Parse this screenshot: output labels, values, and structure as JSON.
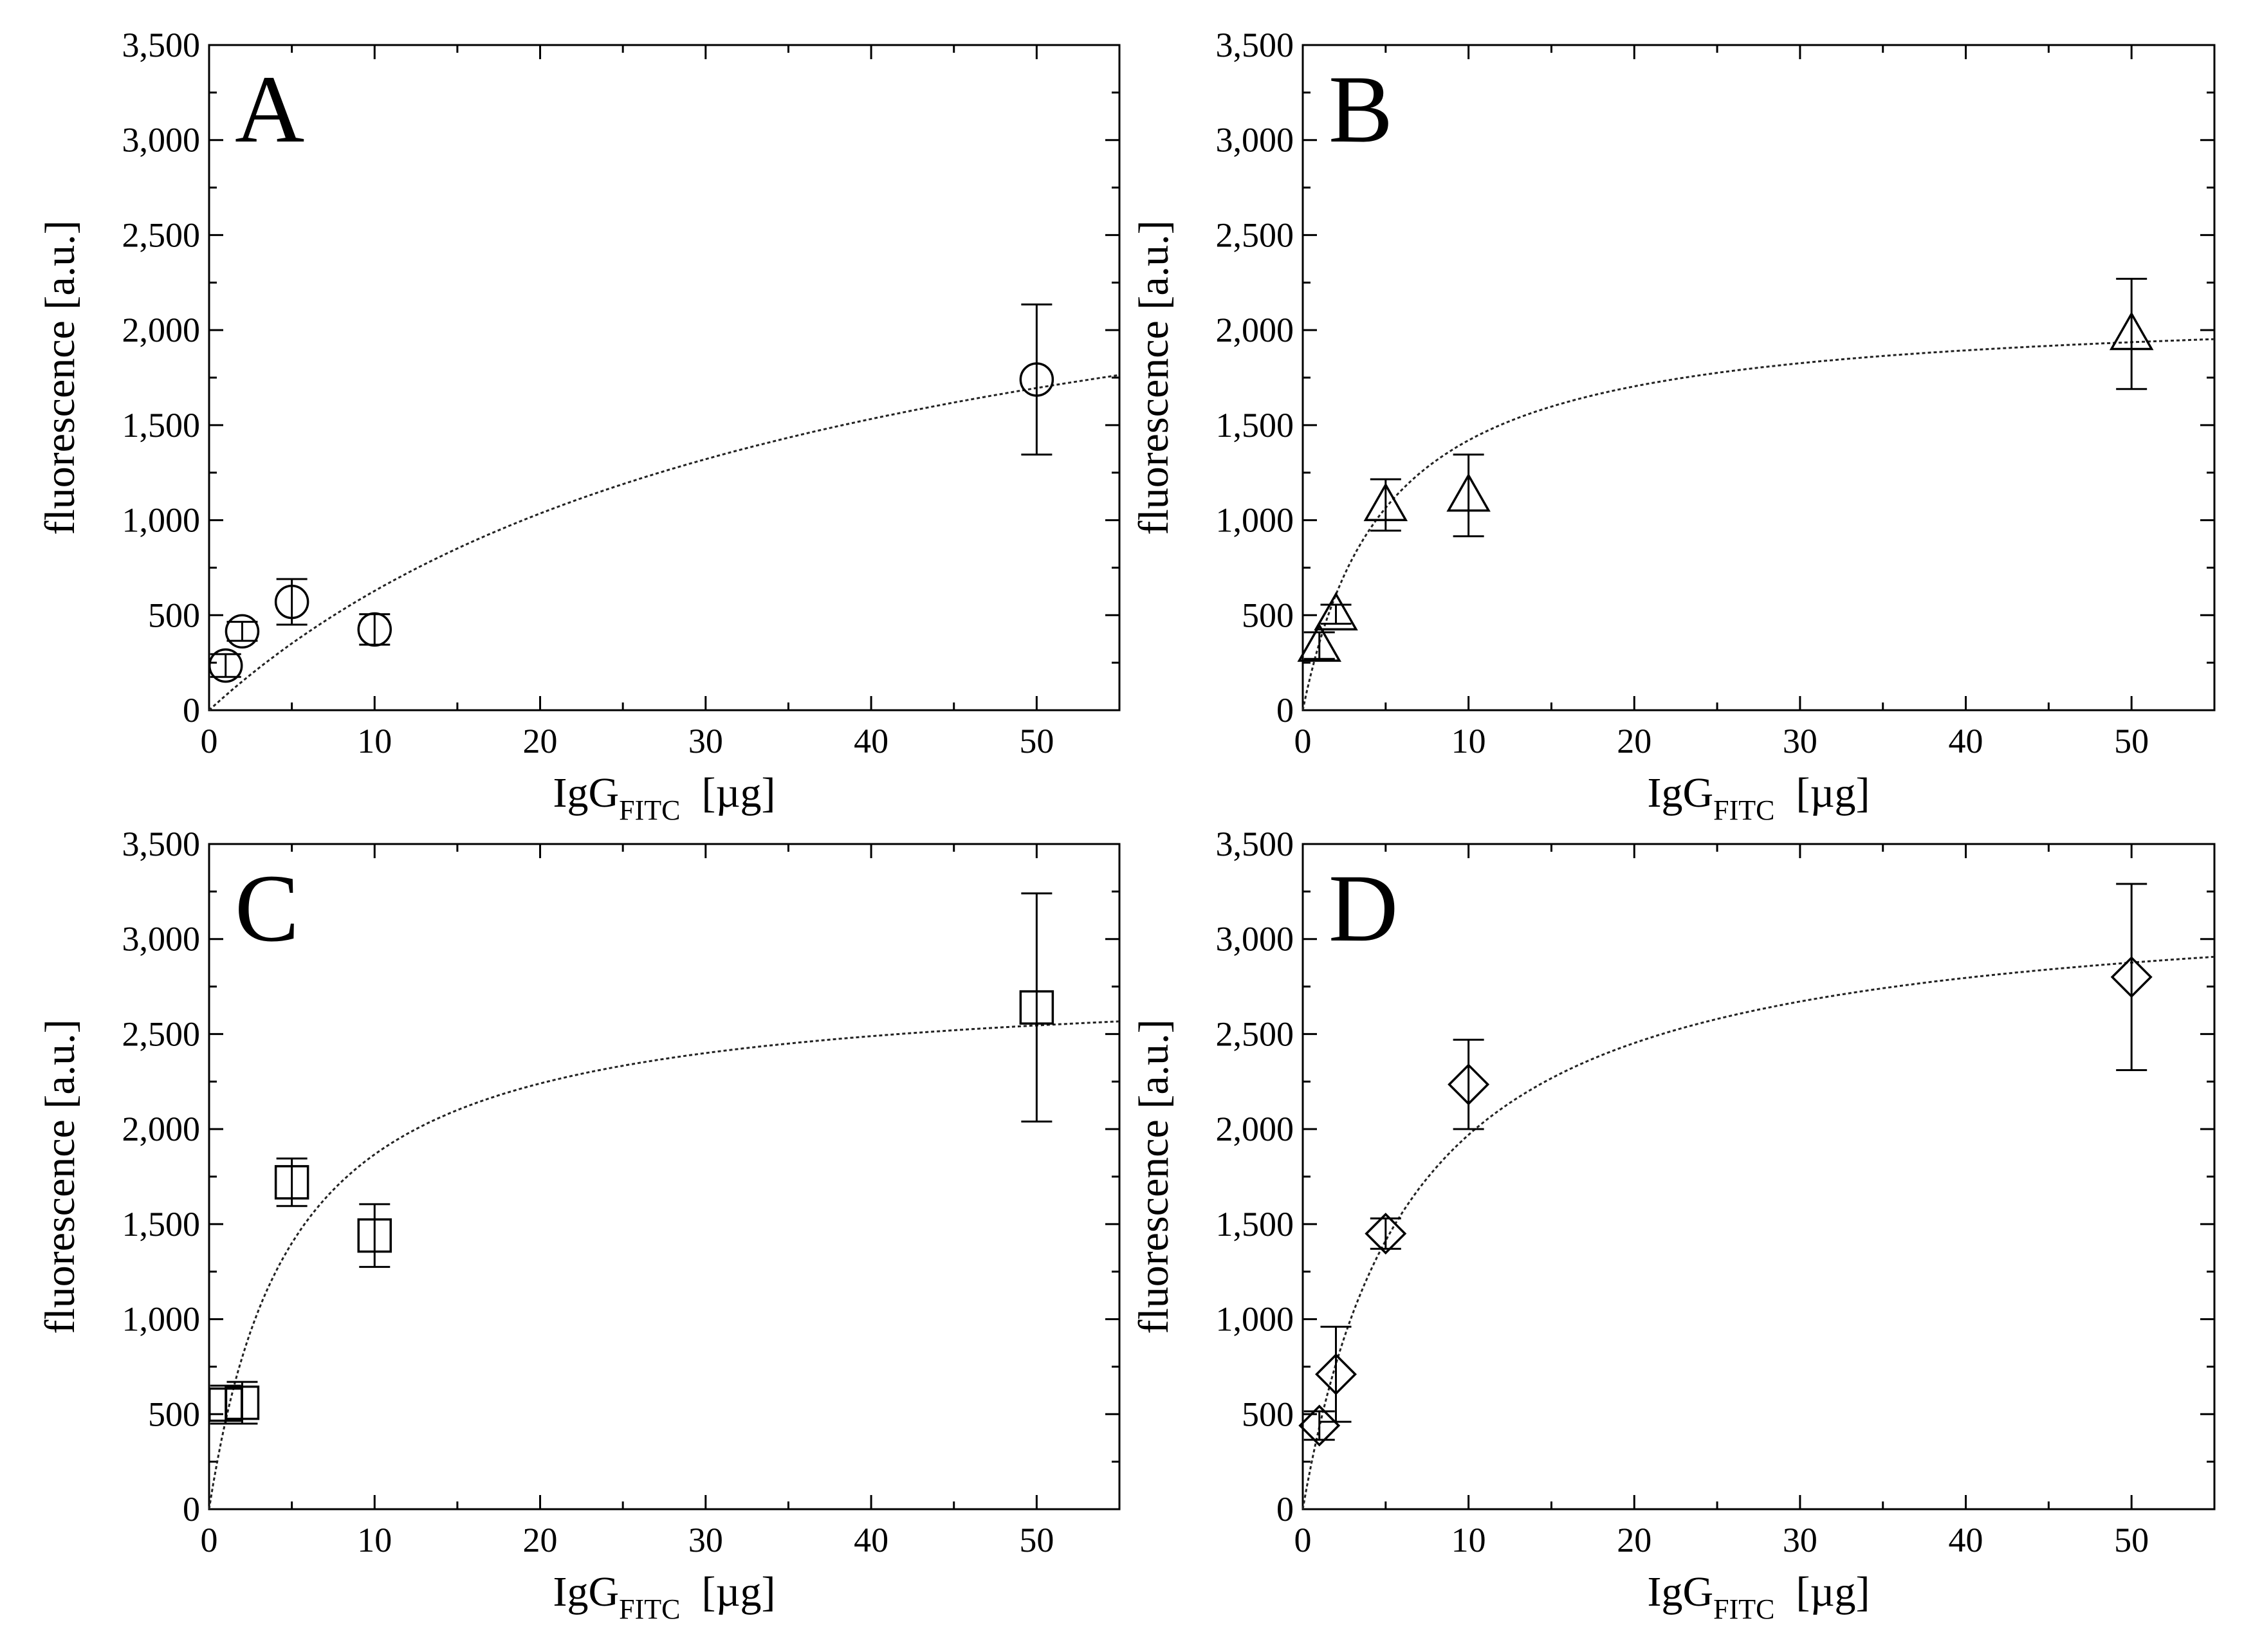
{
  "chart_data": [
    {
      "type": "scatter",
      "panel_label": "A",
      "marker": "circle",
      "xlabel_main": "IgG",
      "xlabel_sub": "FITC",
      "xlabel_unit": "[µg]",
      "ylabel": "fluorescence [a.u.]",
      "xlim": [
        0,
        55
      ],
      "ylim": [
        0,
        3500
      ],
      "x_ticks": [
        0,
        10,
        20,
        30,
        40,
        50
      ],
      "x_tick_labels": [
        "0",
        "10",
        "20",
        "30",
        "40",
        "50"
      ],
      "y_ticks": [
        0,
        500,
        1000,
        1500,
        2000,
        2500,
        3000,
        3500
      ],
      "y_tick_labels": [
        "0",
        "500",
        "1,000",
        "1,500",
        "2,000",
        "2,500",
        "3,000",
        "3,500"
      ],
      "points": [
        {
          "x": 1,
          "y": 235,
          "err": 60
        },
        {
          "x": 2,
          "y": 415,
          "err": 50
        },
        {
          "x": 5,
          "y": 570,
          "err": 120
        },
        {
          "x": 10,
          "y": 425,
          "err": 80
        },
        {
          "x": 50,
          "y": 1740,
          "err": 395
        }
      ],
      "fit": {
        "model": "hyperbolic",
        "bmax": 2950,
        "kd": 37
      }
    },
    {
      "type": "scatter",
      "panel_label": "B",
      "marker": "triangle",
      "xlabel_main": "IgG",
      "xlabel_sub": "FITC",
      "xlabel_unit": "[µg]",
      "ylabel": "fluorescence [a.u.]",
      "xlim": [
        0,
        55
      ],
      "ylim": [
        0,
        3500
      ],
      "x_ticks": [
        0,
        10,
        20,
        30,
        40,
        50
      ],
      "x_tick_labels": [
        "0",
        "10",
        "20",
        "30",
        "40",
        "50"
      ],
      "y_ticks": [
        0,
        500,
        1000,
        1500,
        2000,
        2500,
        3000,
        3500
      ],
      "y_tick_labels": [
        "0",
        "500",
        "1,000",
        "1,500",
        "2,000",
        "2,500",
        "3,000",
        "3,500"
      ],
      "points": [
        {
          "x": 1,
          "y": 340,
          "err": 70
        },
        {
          "x": 2,
          "y": 505,
          "err": 50
        },
        {
          "x": 5,
          "y": 1080,
          "err": 135
        },
        {
          "x": 10,
          "y": 1130,
          "err": 215
        },
        {
          "x": 50,
          "y": 1980,
          "err": 290
        }
      ],
      "fit": {
        "model": "hyperbolic",
        "bmax": 2130,
        "kd": 5
      }
    },
    {
      "type": "scatter",
      "panel_label": "C",
      "marker": "square",
      "xlabel_main": "IgG",
      "xlabel_sub": "FITC",
      "xlabel_unit": "[µg]",
      "ylabel": "fluorescence [a.u.]",
      "xlim": [
        0,
        55
      ],
      "ylim": [
        0,
        3500
      ],
      "x_ticks": [
        0,
        10,
        20,
        30,
        40,
        50
      ],
      "x_tick_labels": [
        "0",
        "10",
        "20",
        "30",
        "40",
        "50"
      ],
      "y_ticks": [
        0,
        500,
        1000,
        1500,
        2000,
        2500,
        3000,
        3500
      ],
      "y_tick_labels": [
        "0",
        "500",
        "1,000",
        "1,500",
        "2,000",
        "2,500",
        "3,000",
        "3,500"
      ],
      "points": [
        {
          "x": 1,
          "y": 550,
          "err": 100
        },
        {
          "x": 2,
          "y": 560,
          "err": 110
        },
        {
          "x": 5,
          "y": 1720,
          "err": 125
        },
        {
          "x": 10,
          "y": 1440,
          "err": 165
        },
        {
          "x": 50,
          "y": 2640,
          "err": 600
        }
      ],
      "fit": {
        "model": "hyperbolic",
        "bmax": 2800,
        "kd": 5
      }
    },
    {
      "type": "scatter",
      "panel_label": "D",
      "marker": "diamond",
      "xlabel_main": "IgG",
      "xlabel_sub": "FITC",
      "xlabel_unit": "[µg]",
      "ylabel": "fluorescence [a.u.]",
      "xlim": [
        0,
        55
      ],
      "ylim": [
        0,
        3500
      ],
      "x_ticks": [
        0,
        10,
        20,
        30,
        40,
        50
      ],
      "x_tick_labels": [
        "0",
        "10",
        "20",
        "30",
        "40",
        "50"
      ],
      "y_ticks": [
        0,
        500,
        1000,
        1500,
        2000,
        2500,
        3000,
        3500
      ],
      "y_tick_labels": [
        "0",
        "500",
        "1,000",
        "1,500",
        "2,000",
        "2,500",
        "3,000",
        "3,500"
      ],
      "points": [
        {
          "x": 1,
          "y": 440,
          "err": 75
        },
        {
          "x": 2,
          "y": 710,
          "err": 250
        },
        {
          "x": 5,
          "y": 1450,
          "err": 80
        },
        {
          "x": 10,
          "y": 2235,
          "err": 235
        },
        {
          "x": 50,
          "y": 2800,
          "err": 490
        }
      ],
      "fit": {
        "model": "hyperbolic",
        "bmax": 3250,
        "kd": 6.5
      }
    }
  ]
}
